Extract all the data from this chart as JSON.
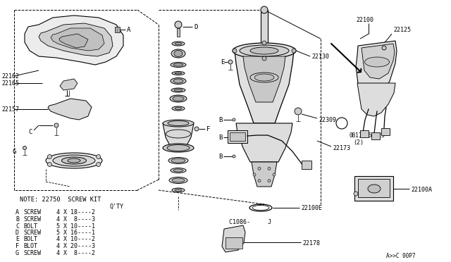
{
  "bg_color": "#ffffff",
  "line_color": "#000000",
  "gray_light": "#d8d8d8",
  "gray_mid": "#b0b0b0",
  "gray_dark": "#888888",
  "note_text": "NOTE: 22750  SCREW KIT",
  "qty_label": "Q'TY",
  "screw_table": [
    [
      "A",
      "SCREW",
      "4 X 18----2"
    ],
    [
      "B",
      "SCREW",
      "4 X  8----3"
    ],
    [
      "C",
      "BOLT",
      "5 X 10----1"
    ],
    [
      "D",
      "SCREW",
      "5 X 16----1"
    ],
    [
      "E",
      "BOLT",
      "4 X 10----2"
    ],
    [
      "F",
      "BLOT",
      "4 X 20----3"
    ],
    [
      "G",
      "SCREW",
      "4 X  8----2"
    ]
  ],
  "diagram_code": "A>>C 00P7"
}
